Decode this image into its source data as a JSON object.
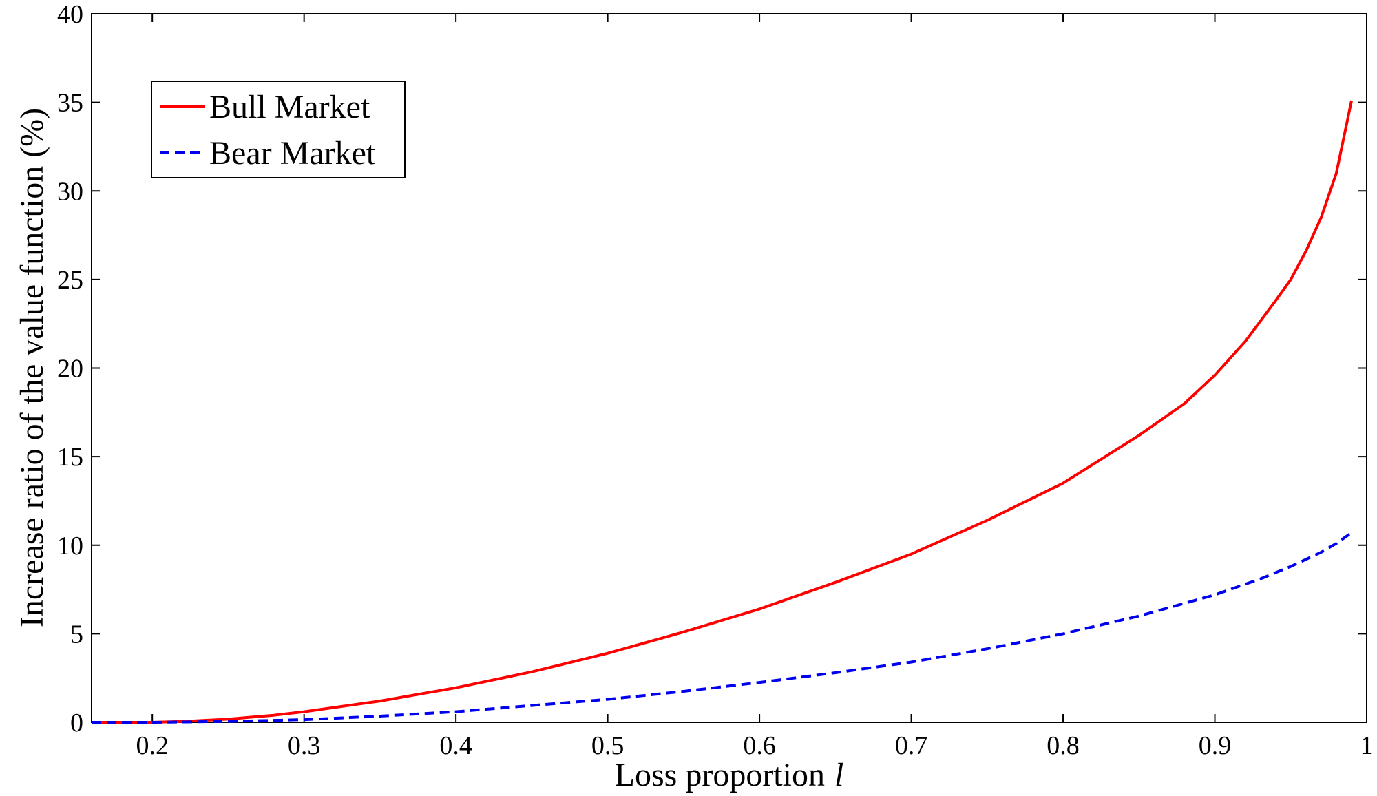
{
  "chart_data": {
    "type": "line",
    "xlabel": "Loss proportion",
    "xlabel_symbol": "l",
    "ylabel": "Increase ratio of the value function (%)",
    "xlim": [
      0.16,
      1.0
    ],
    "ylim": [
      0,
      40
    ],
    "xticks": [
      "0.2",
      "0.3",
      "0.4",
      "0.5",
      "0.6",
      "0.7",
      "0.8",
      "0.9",
      "1"
    ],
    "yticks": [
      "0",
      "5",
      "10",
      "15",
      "20",
      "25",
      "30",
      "35",
      "40"
    ],
    "grid": false,
    "legend_position": "top-left",
    "series": [
      {
        "name": "Bull Market",
        "color": "#ff0000",
        "style": "solid",
        "x": [
          0.16,
          0.18,
          0.2,
          0.22,
          0.25,
          0.28,
          0.3,
          0.35,
          0.4,
          0.45,
          0.5,
          0.55,
          0.6,
          0.65,
          0.7,
          0.75,
          0.8,
          0.85,
          0.88,
          0.9,
          0.92,
          0.94,
          0.95,
          0.96,
          0.97,
          0.98,
          0.99
        ],
        "y": [
          0,
          0,
          0,
          0.05,
          0.18,
          0.4,
          0.6,
          1.2,
          1.95,
          2.85,
          3.9,
          5.1,
          6.4,
          7.9,
          9.5,
          11.4,
          13.5,
          16.2,
          18.0,
          19.6,
          21.5,
          23.8,
          25.0,
          26.6,
          28.5,
          31.0,
          35.1
        ]
      },
      {
        "name": "Bear Market",
        "color": "#0000ee",
        "style": "dashed",
        "x": [
          0.16,
          0.2,
          0.25,
          0.3,
          0.35,
          0.4,
          0.45,
          0.5,
          0.55,
          0.6,
          0.65,
          0.7,
          0.75,
          0.8,
          0.85,
          0.9,
          0.93,
          0.95,
          0.97,
          0.98,
          0.99
        ],
        "y": [
          0,
          0,
          0.05,
          0.15,
          0.35,
          0.6,
          0.95,
          1.3,
          1.75,
          2.25,
          2.8,
          3.4,
          4.15,
          5.0,
          6.0,
          7.2,
          8.1,
          8.8,
          9.6,
          10.1,
          10.7
        ]
      }
    ]
  }
}
